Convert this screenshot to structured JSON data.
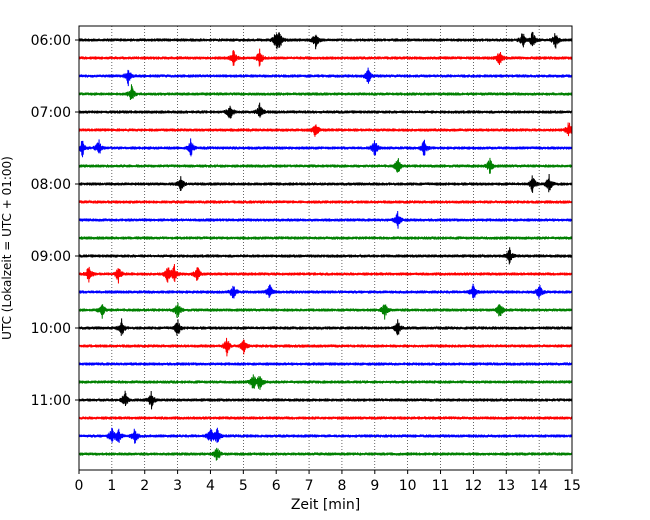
{
  "chart_data": {
    "type": "line",
    "title": "",
    "xlabel": "Zeit  [min]",
    "ylabel": "UTC (Lokalzeit = UTC + 01:00)",
    "xlim": [
      0,
      15
    ],
    "x_ticks": [
      0,
      1,
      2,
      3,
      4,
      5,
      6,
      7,
      8,
      9,
      10,
      11,
      12,
      13,
      14,
      15
    ],
    "y_tick_labels": [
      "06:00",
      "07:00",
      "08:00",
      "09:00",
      "10:00",
      "11:00"
    ],
    "grid": "vertical dotted",
    "row_color_cycle": [
      "#000000",
      "#ff0000",
      "#0000ff",
      "#008000"
    ],
    "rows": [
      {
        "start_utc": "06:00",
        "color": "#000000",
        "events_min": [
          6.0,
          6.1,
          7.2,
          13.5,
          13.8,
          14.5
        ]
      },
      {
        "start_utc": "06:15",
        "color": "#ff0000",
        "events_min": [
          4.7,
          5.5,
          12.8
        ]
      },
      {
        "start_utc": "06:30",
        "color": "#0000ff",
        "events_min": [
          1.5,
          8.8
        ]
      },
      {
        "start_utc": "06:45",
        "color": "#008000",
        "events_min": [
          1.6
        ]
      },
      {
        "start_utc": "07:00",
        "color": "#000000",
        "events_min": [
          4.6,
          5.5
        ]
      },
      {
        "start_utc": "07:15",
        "color": "#ff0000",
        "events_min": [
          7.2,
          14.9
        ]
      },
      {
        "start_utc": "07:30",
        "color": "#0000ff",
        "events_min": [
          0.1,
          0.6,
          3.4,
          9.0,
          10.5
        ]
      },
      {
        "start_utc": "07:45",
        "color": "#008000",
        "events_min": [
          9.7,
          12.5
        ]
      },
      {
        "start_utc": "08:00",
        "color": "#000000",
        "events_min": [
          3.1,
          13.8,
          14.3
        ]
      },
      {
        "start_utc": "08:15",
        "color": "#ff0000",
        "events_min": []
      },
      {
        "start_utc": "08:30",
        "color": "#0000ff",
        "events_min": [
          9.7
        ]
      },
      {
        "start_utc": "08:45",
        "color": "#008000",
        "events_min": []
      },
      {
        "start_utc": "09:00",
        "color": "#000000",
        "events_min": [
          13.1
        ]
      },
      {
        "start_utc": "09:15",
        "color": "#ff0000",
        "events_min": [
          0.3,
          1.2,
          2.7,
          2.9,
          3.6
        ]
      },
      {
        "start_utc": "09:30",
        "color": "#0000ff",
        "events_min": [
          4.7,
          5.8,
          12.0,
          14.0
        ]
      },
      {
        "start_utc": "09:45",
        "color": "#008000",
        "events_min": [
          0.7,
          3.0,
          9.3,
          12.8
        ]
      },
      {
        "start_utc": "10:00",
        "color": "#000000",
        "events_min": [
          1.3,
          3.0,
          9.7
        ]
      },
      {
        "start_utc": "10:15",
        "color": "#ff0000",
        "events_min": [
          4.5,
          5.0
        ]
      },
      {
        "start_utc": "10:30",
        "color": "#0000ff",
        "events_min": []
      },
      {
        "start_utc": "10:45",
        "color": "#008000",
        "events_min": [
          5.3,
          5.5
        ]
      },
      {
        "start_utc": "11:00",
        "color": "#000000",
        "events_min": [
          1.4,
          2.2
        ]
      },
      {
        "start_utc": "11:15",
        "color": "#ff0000",
        "events_min": []
      },
      {
        "start_utc": "11:30",
        "color": "#0000ff",
        "events_min": [
          1.0,
          1.2,
          1.7,
          4.0,
          4.2
        ]
      },
      {
        "start_utc": "11:45",
        "color": "#008000",
        "events_min": [
          4.2
        ]
      }
    ]
  }
}
